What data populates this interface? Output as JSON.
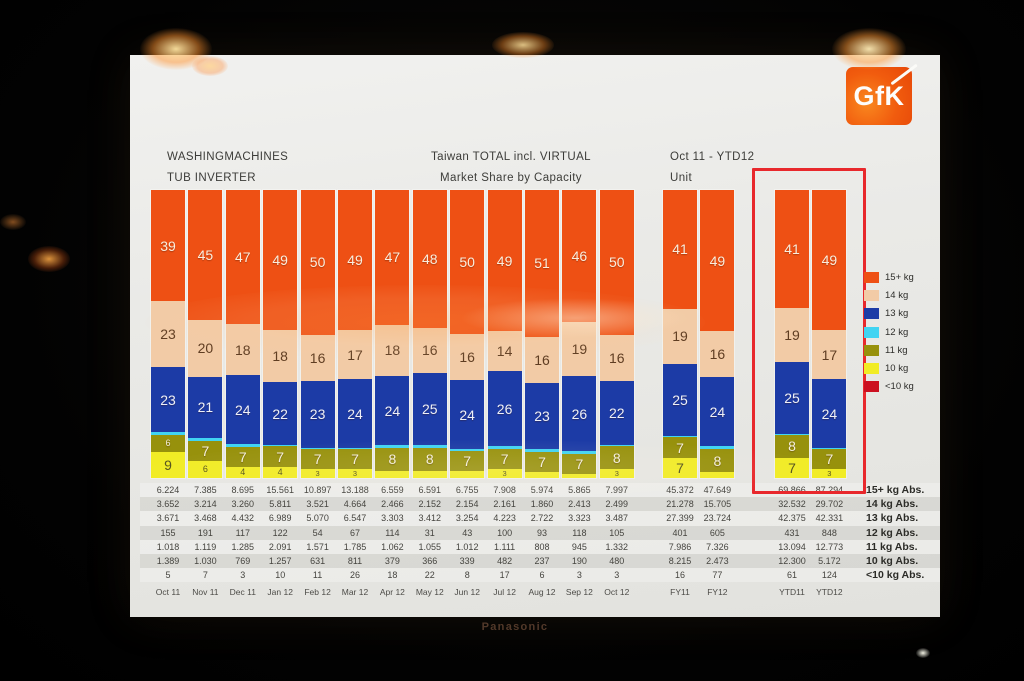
{
  "logo": {
    "text": "GfK"
  },
  "header": {
    "left_line1": "WASHINGMACHINES",
    "left_line2": "TUB INVERTER",
    "center_line1": "Taiwan TOTAL incl. VIRTUAL",
    "center_line2": "Market Share by Capacity",
    "right_line1": "Oct 11 - YTD12",
    "right_line2": "Unit"
  },
  "monitor": {
    "brand": "Panasonic"
  },
  "highlight": {
    "color": "#e8282c",
    "target": "YTD11-YTD12"
  },
  "legend": {
    "position": "right",
    "items": [
      {
        "label": "15+ kg",
        "color": "#ee5014"
      },
      {
        "label": "14 kg",
        "color": "#f2cba6"
      },
      {
        "label": "13 kg",
        "color": "#1c3ba6"
      },
      {
        "label": "12 kg",
        "color": "#41d4f2"
      },
      {
        "label": "11 kg",
        "color": "#97910c"
      },
      {
        "label": "10 kg",
        "color": "#f1ec25"
      },
      {
        "label": "<10 kg",
        "color": "#cc1020"
      }
    ]
  },
  "chart_data": {
    "type": "bar",
    "subtype": "stacked-percent",
    "title": "Market Share by Capacity",
    "unit": "percent",
    "ylim": [
      0,
      100
    ],
    "grid": false,
    "legend_position": "right",
    "segments_order_top_to_bottom": [
      "15+ kg",
      "14 kg",
      "13 kg",
      "12 kg",
      "11 kg",
      "10 kg"
    ],
    "colors": {
      "15+ kg": "#ee5014",
      "14 kg": "#f2cba6",
      "13 kg": "#1c3ba6",
      "12 kg": "#41d4f2",
      "11 kg": "#97910c",
      "10 kg": "#f1ec25",
      "<10 kg": "#cc1020"
    },
    "label_colors": {
      "15+ kg": "#faeede",
      "14 kg": "#5f3d22",
      "13 kg": "#eef0f8",
      "12 kg": "#0b4a5a",
      "11 kg": "#f4efdc",
      "10 kg": "#55531e"
    },
    "categories": [
      "Oct 11",
      "Nov 11",
      "Dec 11",
      "Jan 12",
      "Feb 12",
      "Mar 12",
      "Apr 12",
      "May 12",
      "Jun 12",
      "Jul 12",
      "Aug 12",
      "Sep 12",
      "Oct 12",
      "FY11",
      "FY12",
      "YTD11",
      "YTD12"
    ],
    "bars": [
      {
        "category": "Oct 11",
        "segments": [
          {
            "k": "15+ kg",
            "v": 39,
            "t": "39"
          },
          {
            "k": "14 kg",
            "v": 23,
            "t": "23"
          },
          {
            "k": "13 kg",
            "v": 23,
            "t": "23"
          },
          {
            "k": "12 kg",
            "v": 1,
            "t": ""
          },
          {
            "k": "11 kg",
            "v": 6,
            "t": "6"
          },
          {
            "k": "10 kg",
            "v": 9,
            "t": "9"
          }
        ]
      },
      {
        "category": "Nov 11",
        "segments": [
          {
            "k": "15+ kg",
            "v": 45,
            "t": "45"
          },
          {
            "k": "14 kg",
            "v": 20,
            "t": "20"
          },
          {
            "k": "13 kg",
            "v": 21,
            "t": "21"
          },
          {
            "k": "12 kg",
            "v": 1,
            "t": ""
          },
          {
            "k": "11 kg",
            "v": 7,
            "t": "7"
          },
          {
            "k": "10 kg",
            "v": 6,
            "t": "6"
          }
        ]
      },
      {
        "category": "Dec 11",
        "segments": [
          {
            "k": "15+ kg",
            "v": 47,
            "t": "47"
          },
          {
            "k": "14 kg",
            "v": 18,
            "t": "18"
          },
          {
            "k": "13 kg",
            "v": 24,
            "t": "24"
          },
          {
            "k": "12 kg",
            "v": 1,
            "t": ""
          },
          {
            "k": "11 kg",
            "v": 7,
            "t": "7"
          },
          {
            "k": "10 kg",
            "v": 4,
            "t": "4"
          }
        ]
      },
      {
        "category": "Jan 12",
        "segments": [
          {
            "k": "15+ kg",
            "v": 49,
            "t": "49"
          },
          {
            "k": "14 kg",
            "v": 18,
            "t": "18"
          },
          {
            "k": "13 kg",
            "v": 22,
            "t": "22"
          },
          {
            "k": "12 kg",
            "v": 0.5,
            "t": ""
          },
          {
            "k": "11 kg",
            "v": 7,
            "t": "7"
          },
          {
            "k": "10 kg",
            "v": 4,
            "t": "4"
          }
        ]
      },
      {
        "category": "Feb 12",
        "segments": [
          {
            "k": "15+ kg",
            "v": 50,
            "t": "50"
          },
          {
            "k": "14 kg",
            "v": 16,
            "t": "16"
          },
          {
            "k": "13 kg",
            "v": 23,
            "t": "23"
          },
          {
            "k": "12 kg",
            "v": 0.5,
            "t": ""
          },
          {
            "k": "11 kg",
            "v": 7,
            "t": "7"
          },
          {
            "k": "10 kg",
            "v": 3,
            "t": "3"
          }
        ]
      },
      {
        "category": "Mar 12",
        "segments": [
          {
            "k": "15+ kg",
            "v": 49,
            "t": "49"
          },
          {
            "k": "14 kg",
            "v": 17,
            "t": "17"
          },
          {
            "k": "13 kg",
            "v": 24,
            "t": "24"
          },
          {
            "k": "12 kg",
            "v": 0.5,
            "t": ""
          },
          {
            "k": "11 kg",
            "v": 7,
            "t": "7"
          },
          {
            "k": "10 kg",
            "v": 3,
            "t": "3"
          }
        ]
      },
      {
        "category": "Apr 12",
        "segments": [
          {
            "k": "15+ kg",
            "v": 47,
            "t": "47"
          },
          {
            "k": "14 kg",
            "v": 18,
            "t": "18"
          },
          {
            "k": "13 kg",
            "v": 24,
            "t": "24"
          },
          {
            "k": "12 kg",
            "v": 1,
            "t": ""
          },
          {
            "k": "11 kg",
            "v": 8,
            "t": "8"
          },
          {
            "k": "10 kg",
            "v": 2.5,
            "t": ""
          }
        ]
      },
      {
        "category": "May 12",
        "segments": [
          {
            "k": "15+ kg",
            "v": 48,
            "t": "48"
          },
          {
            "k": "14 kg",
            "v": 16,
            "t": "16"
          },
          {
            "k": "13 kg",
            "v": 25,
            "t": "25"
          },
          {
            "k": "12 kg",
            "v": 1,
            "t": ""
          },
          {
            "k": "11 kg",
            "v": 8,
            "t": "8"
          },
          {
            "k": "10 kg",
            "v": 2.5,
            "t": ""
          }
        ]
      },
      {
        "category": "Jun 12",
        "segments": [
          {
            "k": "15+ kg",
            "v": 50,
            "t": "50"
          },
          {
            "k": "14 kg",
            "v": 16,
            "t": "16"
          },
          {
            "k": "13 kg",
            "v": 24,
            "t": "24"
          },
          {
            "k": "12 kg",
            "v": 0.5,
            "t": ""
          },
          {
            "k": "11 kg",
            "v": 7,
            "t": "7"
          },
          {
            "k": "10 kg",
            "v": 2.5,
            "t": ""
          }
        ]
      },
      {
        "category": "Jul 12",
        "segments": [
          {
            "k": "15+ kg",
            "v": 49,
            "t": "49"
          },
          {
            "k": "14 kg",
            "v": 14,
            "t": "14"
          },
          {
            "k": "13 kg",
            "v": 26,
            "t": "26"
          },
          {
            "k": "12 kg",
            "v": 1,
            "t": ""
          },
          {
            "k": "11 kg",
            "v": 7,
            "t": "7"
          },
          {
            "k": "10 kg",
            "v": 3,
            "t": "3"
          }
        ]
      },
      {
        "category": "Aug 12",
        "segments": [
          {
            "k": "15+ kg",
            "v": 51,
            "t": "51"
          },
          {
            "k": "14 kg",
            "v": 16,
            "t": "16"
          },
          {
            "k": "13 kg",
            "v": 23,
            "t": "23"
          },
          {
            "k": "12 kg",
            "v": 1,
            "t": ""
          },
          {
            "k": "11 kg",
            "v": 7,
            "t": "7"
          },
          {
            "k": "10 kg",
            "v": 2,
            "t": ""
          }
        ]
      },
      {
        "category": "Sep 12",
        "segments": [
          {
            "k": "15+ kg",
            "v": 46,
            "t": "46"
          },
          {
            "k": "14 kg",
            "v": 19,
            "t": "19"
          },
          {
            "k": "13 kg",
            "v": 26,
            "t": "26"
          },
          {
            "k": "12 kg",
            "v": 1,
            "t": ""
          },
          {
            "k": "11 kg",
            "v": 7,
            "t": "7"
          },
          {
            "k": "10 kg",
            "v": 1.5,
            "t": ""
          }
        ]
      },
      {
        "category": "Oct 12",
        "segments": [
          {
            "k": "15+ kg",
            "v": 50,
            "t": "50"
          },
          {
            "k": "14 kg",
            "v": 16,
            "t": "16"
          },
          {
            "k": "13 kg",
            "v": 22,
            "t": "22"
          },
          {
            "k": "12 kg",
            "v": 0.5,
            "t": ""
          },
          {
            "k": "11 kg",
            "v": 8,
            "t": "8"
          },
          {
            "k": "10 kg",
            "v": 3,
            "t": "3"
          }
        ]
      },
      {
        "category": "FY11",
        "segments": [
          {
            "k": "15+ kg",
            "v": 41,
            "t": "41"
          },
          {
            "k": "14 kg",
            "v": 19,
            "t": "19"
          },
          {
            "k": "13 kg",
            "v": 25,
            "t": "25"
          },
          {
            "k": "12 kg",
            "v": 0.5,
            "t": ""
          },
          {
            "k": "11 kg",
            "v": 7,
            "t": "7"
          },
          {
            "k": "10 kg",
            "v": 7,
            "t": "7"
          }
        ]
      },
      {
        "category": "FY12",
        "segments": [
          {
            "k": "15+ kg",
            "v": 49,
            "t": "49"
          },
          {
            "k": "14 kg",
            "v": 16,
            "t": "16"
          },
          {
            "k": "13 kg",
            "v": 24,
            "t": "24"
          },
          {
            "k": "12 kg",
            "v": 1,
            "t": ""
          },
          {
            "k": "11 kg",
            "v": 8,
            "t": "8"
          },
          {
            "k": "10 kg",
            "v": 2,
            "t": ""
          }
        ]
      },
      {
        "category": "YTD11",
        "segments": [
          {
            "k": "15+ kg",
            "v": 41,
            "t": "41"
          },
          {
            "k": "14 kg",
            "v": 19,
            "t": "19"
          },
          {
            "k": "13 kg",
            "v": 25,
            "t": "25"
          },
          {
            "k": "12 kg",
            "v": 0.5,
            "t": ""
          },
          {
            "k": "11 kg",
            "v": 8,
            "t": "8"
          },
          {
            "k": "10 kg",
            "v": 7,
            "t": "7"
          }
        ]
      },
      {
        "category": "YTD12",
        "segments": [
          {
            "k": "15+ kg",
            "v": 49,
            "t": "49"
          },
          {
            "k": "14 kg",
            "v": 17,
            "t": "17"
          },
          {
            "k": "13 kg",
            "v": 24,
            "t": "24"
          },
          {
            "k": "12 kg",
            "v": 0.5,
            "t": ""
          },
          {
            "k": "11 kg",
            "v": 7,
            "t": "7"
          },
          {
            "k": "10 kg",
            "v": 3,
            "t": "3"
          }
        ]
      }
    ],
    "abs_table": {
      "row_labels": [
        "15+ kg Abs.",
        "14 kg Abs.",
        "13 kg Abs.",
        "12 kg Abs.",
        "11 kg Abs.",
        "10 kg Abs.",
        "<10 kg Abs."
      ],
      "columns": [
        "Oct 11",
        "Nov 11",
        "Dec 11",
        "Jan 12",
        "Feb 12",
        "Mar 12",
        "Apr 12",
        "May 12",
        "Jun 12",
        "Jul 12",
        "Aug 12",
        "Sep 12",
        "Oct 12",
        "FY11",
        "FY12",
        "YTD11",
        "YTD12"
      ],
      "rows": [
        [
          "6.224",
          "7.385",
          "8.695",
          "15.561",
          "10.897",
          "13.188",
          "6.559",
          "6.591",
          "6.755",
          "7.908",
          "5.974",
          "5.865",
          "7.997",
          "45.372",
          "47.649",
          "69.866",
          "87.294"
        ],
        [
          "3.652",
          "3.214",
          "3.260",
          "5.811",
          "3.521",
          "4.664",
          "2.466",
          "2.152",
          "2.154",
          "2.161",
          "1.860",
          "2.413",
          "2.499",
          "21.278",
          "15.705",
          "32.532",
          "29.702"
        ],
        [
          "3.671",
          "3.468",
          "4.432",
          "6.989",
          "5.070",
          "6.547",
          "3.303",
          "3.412",
          "3.254",
          "4.223",
          "2.722",
          "3.323",
          "3.487",
          "27.399",
          "23.724",
          "42.375",
          "42.331"
        ],
        [
          "155",
          "191",
          "117",
          "122",
          "54",
          "67",
          "114",
          "31",
          "43",
          "100",
          "93",
          "118",
          "105",
          "401",
          "605",
          "431",
          "848"
        ],
        [
          "1.018",
          "1.119",
          "1.285",
          "2.091",
          "1.571",
          "1.785",
          "1.062",
          "1.055",
          "1.012",
          "1.111",
          "808",
          "945",
          "1.332",
          "7.986",
          "7.326",
          "13.094",
          "12.773"
        ],
        [
          "1.389",
          "1.030",
          "769",
          "1.257",
          "631",
          "811",
          "379",
          "366",
          "339",
          "482",
          "237",
          "190",
          "480",
          "8.215",
          "2.473",
          "12.300",
          "5.172"
        ],
        [
          "5",
          "7",
          "3",
          "10",
          "11",
          "26",
          "18",
          "22",
          "8",
          "17",
          "6",
          "3",
          "3",
          "16",
          "77",
          "61",
          "124"
        ]
      ]
    }
  }
}
